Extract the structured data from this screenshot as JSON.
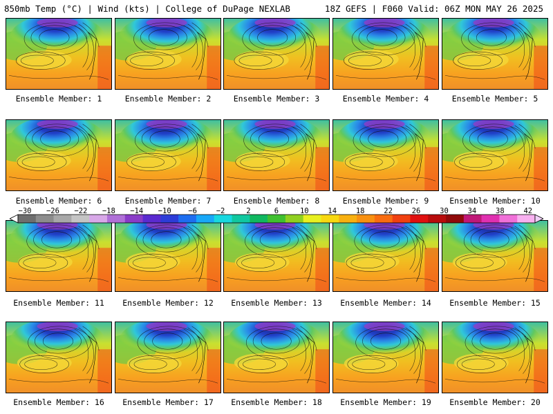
{
  "header": {
    "left": "850mb Temp (°C) | Wind (kts) | College of DuPage NEXLAB",
    "right": "18Z GEFS | F060 Valid: 06Z MON MAY 26 2025"
  },
  "colorbar": {
    "ticks": [
      "−30",
      "−26",
      "−22",
      "−18",
      "−14",
      "−10",
      "−6",
      "−2",
      "2",
      "6",
      "10",
      "14",
      "18",
      "22",
      "26",
      "30",
      "34",
      "38",
      "42"
    ],
    "colors": [
      "#6e6e6e",
      "#8c8c8c",
      "#a8a8a8",
      "#c4c4c4",
      "#d8a8e8",
      "#b070d8",
      "#8a3cc8",
      "#5a2ad0",
      "#2c3cd8",
      "#1e6ef0",
      "#18a8f8",
      "#18d8e0",
      "#10c8a0",
      "#10b860",
      "#40c030",
      "#90d020",
      "#e8f020",
      "#f8d810",
      "#f8b010",
      "#f89010",
      "#f86c10",
      "#f04010",
      "#e01010",
      "#b80c0c",
      "#900a0a",
      "#c01878",
      "#e030b0",
      "#f070d8",
      "#f8b0f0"
    ]
  },
  "members": [
    {
      "label": "Ensemble Member: 1"
    },
    {
      "label": "Ensemble Member: 2"
    },
    {
      "label": "Ensemble Member: 3"
    },
    {
      "label": "Ensemble Member: 4"
    },
    {
      "label": "Ensemble Member: 5"
    },
    {
      "label": "Ensemble Member: 6"
    },
    {
      "label": "Ensemble Member: 7"
    },
    {
      "label": "Ensemble Member: 8"
    },
    {
      "label": "Ensemble Member: 9"
    },
    {
      "label": "Ensemble Member: 10"
    },
    {
      "label": "Ensemble Member: 11"
    },
    {
      "label": "Ensemble Member: 12"
    },
    {
      "label": "Ensemble Member: 13"
    },
    {
      "label": "Ensemble Member: 14"
    },
    {
      "label": "Ensemble Member: 15"
    },
    {
      "label": "Ensemble Member: 16"
    },
    {
      "label": "Ensemble Member: 17"
    },
    {
      "label": "Ensemble Member: 18"
    },
    {
      "label": "Ensemble Member: 19"
    },
    {
      "label": "Ensemble Member: 20"
    }
  ]
}
